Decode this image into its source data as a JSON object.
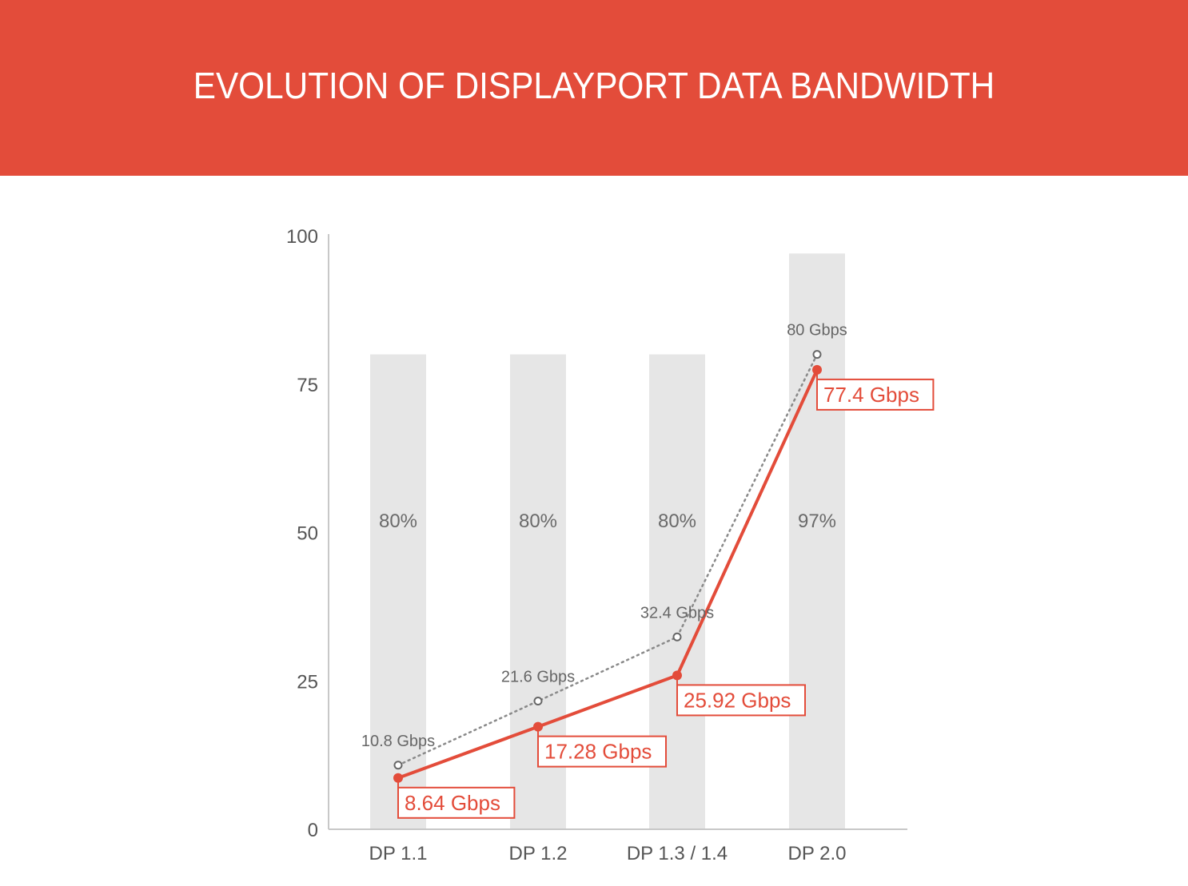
{
  "header": {
    "title": "EVOLUTION OF DISPLAYPORT DATA BANDWIDTH"
  },
  "colors": {
    "banner": "#e34c3a",
    "accent": "#e34c3a",
    "bar": "#e6e6e6",
    "dotted_line": "#8a8a8a",
    "axis": "#c8c8c8"
  },
  "chart_data": {
    "type": "line",
    "title": "EVOLUTION OF DISPLAYPORT DATA BANDWIDTH",
    "xlabel": "",
    "ylabel": "",
    "ylim": [
      0,
      100
    ],
    "yticks": [
      "0",
      "25",
      "50",
      "75",
      "100"
    ],
    "categories": [
      "DP 1.1",
      "DP 1.2",
      "DP 1.3 / 1.4",
      "DP 2.0"
    ],
    "highlight_category": "DP 2.0",
    "bars": {
      "values": [
        80,
        80,
        80,
        97
      ],
      "labels": [
        "80%",
        "80%",
        "80%",
        "97%"
      ]
    },
    "series": [
      {
        "style": "dotted",
        "values": [
          10.8,
          21.6,
          32.4,
          80
        ],
        "labels": [
          "10.8 Gbps",
          "21.6 Gbps",
          "32.4 Gbps",
          "80 Gbps"
        ]
      },
      {
        "style": "solid",
        "values": [
          8.64,
          17.28,
          25.92,
          77.4
        ],
        "labels": [
          "8.64 Gbps",
          "17.28 Gbps",
          "25.92 Gbps",
          "77.4 Gbps"
        ]
      }
    ],
    "grid": false,
    "legend": "none"
  }
}
